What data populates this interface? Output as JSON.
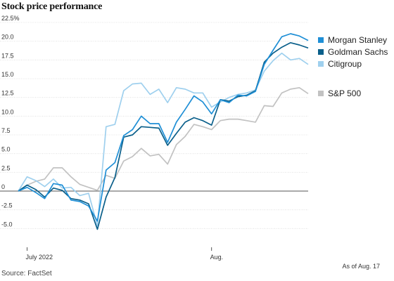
{
  "title": "Stock price performance",
  "source": "Source: FactSet",
  "as_of": "As of Aug. 17",
  "chart_data": {
    "type": "line",
    "title": "Stock price performance",
    "ylim": [
      -7.5,
      22.5
    ],
    "yticks": [
      -5,
      -2.5,
      0,
      2.5,
      5,
      7.5,
      10,
      12.5,
      15,
      17.5,
      20,
      22.5
    ],
    "ytick_labels": [
      "-5.0",
      "-2.5",
      "0",
      "2.5",
      "5.0",
      "7.5",
      "10.0",
      "12.5",
      "15.0",
      "17.5",
      "20.0",
      "22.5%"
    ],
    "xtick_labels": [
      "July 2022",
      "Aug."
    ],
    "xtick_index": [
      1,
      22
    ],
    "grid": "horizontal",
    "legend_position": "right",
    "series": [
      {
        "name": "Morgan Stanley",
        "color": "#1f8fd6",
        "values": [
          0,
          0.5,
          -0.2,
          -1.0,
          1.0,
          0.8,
          -1.2,
          -1.4,
          -2.0,
          -4.0,
          2.8,
          3.8,
          7.4,
          8.2,
          10.0,
          9.0,
          9.0,
          6.5,
          9.2,
          10.9,
          12.7,
          11.9,
          10.3,
          12.2,
          11.8,
          12.8,
          12.7,
          13.3,
          16.9,
          18.8,
          20.6,
          21.0,
          20.7,
          20.1
        ]
      },
      {
        "name": "Goldman Sachs",
        "color": "#0a5f8a",
        "values": [
          0,
          0.8,
          0.2,
          -0.8,
          0.4,
          0.1,
          -1.0,
          -1.2,
          -1.7,
          -5.1,
          -0.8,
          1.8,
          7.2,
          7.5,
          8.6,
          8.5,
          8.4,
          6.1,
          7.7,
          9.2,
          9.8,
          9.4,
          8.8,
          12.2,
          12.0,
          12.6,
          12.8,
          13.4,
          17.2,
          18.4,
          19.2,
          19.8,
          19.5,
          19.1
        ]
      },
      {
        "name": "Citigroup",
        "color": "#9fd0ee",
        "values": [
          0,
          1.9,
          1.4,
          0.6,
          1.6,
          0.4,
          0.5,
          -0.6,
          -0.3,
          -4.6,
          8.6,
          8.9,
          13.4,
          14.3,
          14.4,
          12.9,
          13.6,
          11.8,
          13.8,
          13.6,
          13.1,
          13.1,
          11.2,
          11.9,
          12.5,
          12.9,
          13.1,
          13.5,
          16.0,
          17.4,
          18.4,
          17.5,
          17.7,
          16.9
        ]
      },
      {
        "name": "S&P 500",
        "color": "#c2c2c2",
        "values": [
          0,
          0.8,
          1.3,
          1.6,
          3.1,
          3.1,
          1.9,
          0.9,
          0.5,
          0.1,
          2.1,
          1.7,
          4.0,
          4.6,
          5.7,
          4.7,
          4.9,
          3.6,
          6.2,
          7.3,
          8.9,
          8.6,
          8.2,
          9.4,
          9.6,
          9.6,
          9.4,
          9.2,
          11.4,
          11.3,
          13.1,
          13.6,
          13.8,
          13.0
        ]
      }
    ]
  }
}
